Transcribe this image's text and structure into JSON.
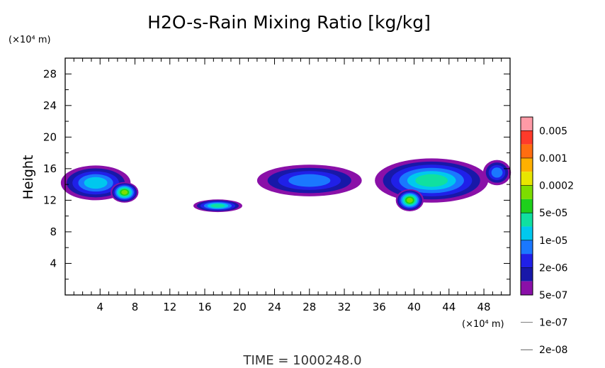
{
  "chart_data": {
    "type": "heatmap",
    "title": "H2O-s-Rain Mixing Ratio [kg/kg]",
    "ylabel": "Height",
    "xunit": "(×10⁴ m)",
    "yunit": "(×10⁴ m)",
    "xlim": [
      0,
      51
    ],
    "ylim": [
      0,
      30
    ],
    "xticks": [
      "4",
      "8",
      "12",
      "16",
      "20",
      "24",
      "28",
      "32",
      "36",
      "40",
      "44",
      "48"
    ],
    "yticks": [
      "4",
      "8",
      "12",
      "16",
      "20",
      "24",
      "28"
    ],
    "colorbar": {
      "levels": [
        "0.005",
        "0.001",
        "0.0002",
        "5e-05",
        "1e-05",
        "2e-06",
        "5e-07",
        "1e-07",
        "2e-08"
      ],
      "colors": [
        "#ff9aa6",
        "#ff3a2a",
        "#ff6d10",
        "#ffb000",
        "#e8e600",
        "#7ddd00",
        "#1ed01c",
        "#10e0a0",
        "#00c8ee",
        "#1a78ff",
        "#2020e8",
        "#1818a8",
        "#8a10a8"
      ]
    },
    "blobs": [
      {
        "cx": 3.5,
        "cy": 14.2,
        "rx": 4.0,
        "ry": 2.2,
        "level": 4
      },
      {
        "cx": 6.8,
        "cy": 13.0,
        "rx": 1.6,
        "ry": 1.3,
        "level": 7
      },
      {
        "cx": 17.5,
        "cy": 11.3,
        "rx": 2.8,
        "ry": 0.8,
        "level": 5
      },
      {
        "cx": 28.0,
        "cy": 14.5,
        "rx": 6.0,
        "ry": 2.0,
        "level": 3
      },
      {
        "cx": 42.0,
        "cy": 14.5,
        "rx": 6.5,
        "ry": 2.8,
        "level": 5
      },
      {
        "cx": 39.5,
        "cy": 12.0,
        "rx": 1.6,
        "ry": 1.4,
        "level": 7
      },
      {
        "cx": 49.5,
        "cy": 15.5,
        "rx": 1.6,
        "ry": 1.6,
        "level": 3
      }
    ]
  },
  "footer": {
    "time_label": "TIME  =  1000248.0"
  }
}
